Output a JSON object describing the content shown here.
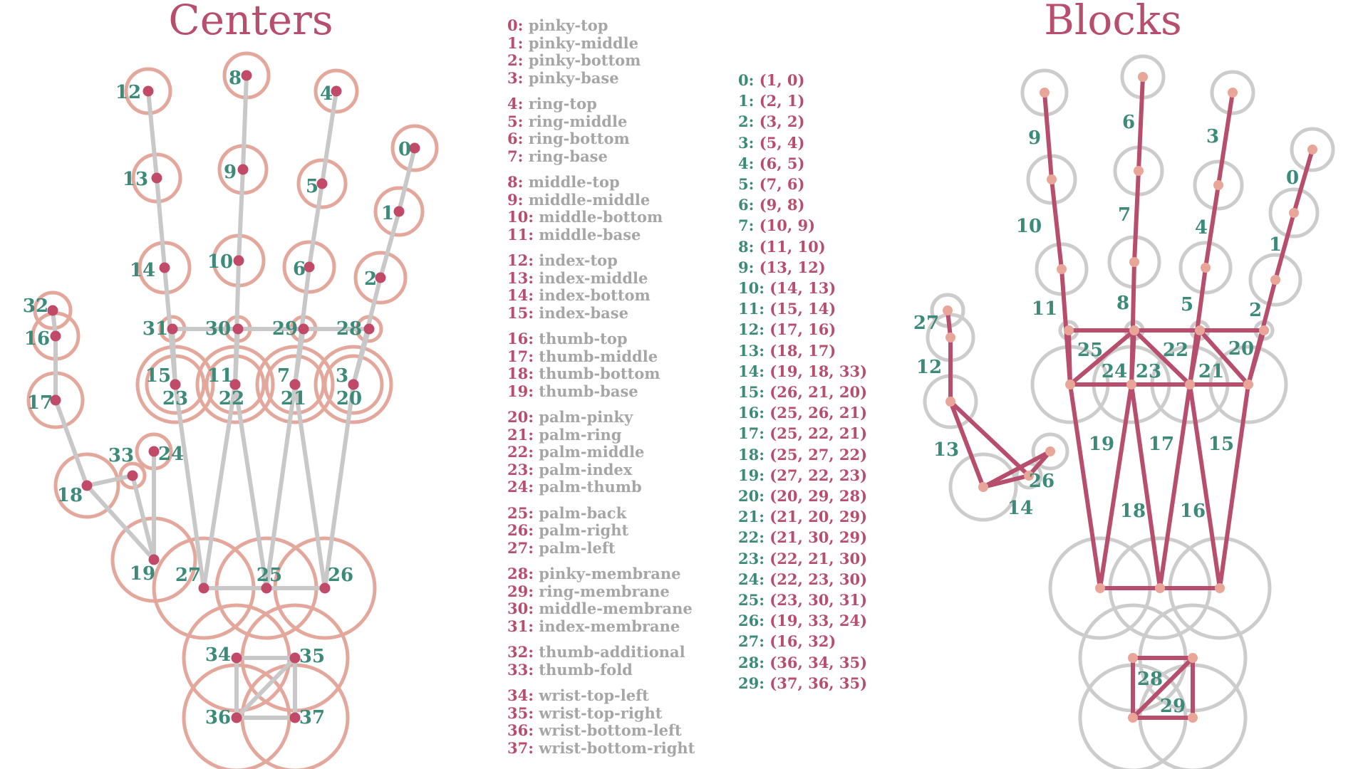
{
  "titles": {
    "left": "Centers",
    "right": "Blocks"
  },
  "colors": {
    "title": "#b84e6e",
    "dot": "#c04a68",
    "circle_left": "#e4a79c",
    "bone": "#c8c8c8",
    "label": "#3b8a7a",
    "block_edge": "#b84e6e",
    "block_node": "#e9a598",
    "circle_right": "#cccccc",
    "legend_name": "#a6a6a6"
  },
  "legend_groups": [
    [
      {
        "n": "0:",
        "name": "pinky-top"
      },
      {
        "n": "1:",
        "name": "pinky-middle"
      },
      {
        "n": "2:",
        "name": "pinky-bottom"
      },
      {
        "n": "3:",
        "name": "pinky-base"
      }
    ],
    [
      {
        "n": "4:",
        "name": "ring-top"
      },
      {
        "n": "5:",
        "name": "ring-middle"
      },
      {
        "n": "6:",
        "name": "ring-bottom"
      },
      {
        "n": "7:",
        "name": "ring-base"
      }
    ],
    [
      {
        "n": "8:",
        "name": "middle-top"
      },
      {
        "n": "9:",
        "name": "middle-middle"
      },
      {
        "n": "10:",
        "name": "middle-bottom"
      },
      {
        "n": "11:",
        "name": "middle-base"
      }
    ],
    [
      {
        "n": "12:",
        "name": "index-top"
      },
      {
        "n": "13:",
        "name": "index-middle"
      },
      {
        "n": "14:",
        "name": "index-bottom"
      },
      {
        "n": "15:",
        "name": "index-base"
      }
    ],
    [
      {
        "n": "16:",
        "name": "thumb-top"
      },
      {
        "n": "17:",
        "name": "thumb-middle"
      },
      {
        "n": "18:",
        "name": "thumb-bottom"
      },
      {
        "n": "19:",
        "name": "thumb-base"
      }
    ],
    [
      {
        "n": "20:",
        "name": "palm-pinky"
      },
      {
        "n": "21:",
        "name": "palm-ring"
      },
      {
        "n": "22:",
        "name": "palm-middle"
      },
      {
        "n": "23:",
        "name": "palm-index"
      },
      {
        "n": "24:",
        "name": "palm-thumb"
      }
    ],
    [
      {
        "n": "25:",
        "name": "palm-back"
      },
      {
        "n": "26:",
        "name": "palm-right"
      },
      {
        "n": "27:",
        "name": "palm-left"
      }
    ],
    [
      {
        "n": "28:",
        "name": "pinky-membrane"
      },
      {
        "n": "29:",
        "name": "ring-membrane"
      },
      {
        "n": "30:",
        "name": "middle-membrane"
      },
      {
        "n": "31:",
        "name": "index-membrane"
      }
    ],
    [
      {
        "n": "32:",
        "name": "thumb-additional"
      },
      {
        "n": "33:",
        "name": "thumb-fold"
      }
    ],
    [
      {
        "n": "34:",
        "name": "wrist-top-left"
      },
      {
        "n": "35:",
        "name": "wrist-top-right"
      },
      {
        "n": "36:",
        "name": "wrist-bottom-left"
      },
      {
        "n": "37:",
        "name": "wrist-bottom-right"
      }
    ]
  ],
  "blocks": [
    {
      "id": "0:",
      "nodes": "(1, 0)"
    },
    {
      "id": "1:",
      "nodes": "(2, 1)"
    },
    {
      "id": "2:",
      "nodes": "(3, 2)"
    },
    {
      "id": "3:",
      "nodes": "(5, 4)"
    },
    {
      "id": "4:",
      "nodes": "(6, 5)"
    },
    {
      "id": "5:",
      "nodes": "(7, 6)"
    },
    {
      "id": "6:",
      "nodes": "(9, 8)"
    },
    {
      "id": "7:",
      "nodes": "(10, 9)"
    },
    {
      "id": "8:",
      "nodes": "(11, 10)"
    },
    {
      "id": "9:",
      "nodes": "(13, 12)"
    },
    {
      "id": "10:",
      "nodes": "(14, 13)"
    },
    {
      "id": "11:",
      "nodes": "(15, 14)"
    },
    {
      "id": "12:",
      "nodes": "(17, 16)"
    },
    {
      "id": "13:",
      "nodes": "(18, 17)"
    },
    {
      "id": "14:",
      "nodes": "(19, 18, 33)"
    },
    {
      "id": "15:",
      "nodes": "(26, 21, 20)"
    },
    {
      "id": "16:",
      "nodes": "(25, 26, 21)"
    },
    {
      "id": "17:",
      "nodes": "(25, 22, 21)"
    },
    {
      "id": "18:",
      "nodes": "(25, 27, 22)"
    },
    {
      "id": "19:",
      "nodes": "(27, 22, 23)"
    },
    {
      "id": "20:",
      "nodes": "(20, 29, 28)"
    },
    {
      "id": "21:",
      "nodes": "(21, 20, 29)"
    },
    {
      "id": "22:",
      "nodes": "(21, 30, 29)"
    },
    {
      "id": "23:",
      "nodes": "(22, 21, 30)"
    },
    {
      "id": "24:",
      "nodes": "(22, 23, 30)"
    },
    {
      "id": "25:",
      "nodes": "(23, 30, 31)"
    },
    {
      "id": "26:",
      "nodes": "(19, 33, 24)"
    },
    {
      "id": "27:",
      "nodes": "(16, 32)"
    },
    {
      "id": "28:",
      "nodes": "(36, 34, 35)"
    },
    {
      "id": "29:",
      "nodes": "(37, 36, 35)"
    }
  ],
  "center_labels": [
    "0",
    "1",
    "2",
    "3",
    "4",
    "5",
    "6",
    "7",
    "8",
    "9",
    "10",
    "11",
    "12",
    "13",
    "14",
    "15",
    "16",
    "17",
    "18",
    "19",
    "20",
    "21",
    "22",
    "23",
    "24",
    "25",
    "26",
    "27",
    "28",
    "29",
    "30",
    "31",
    "32",
    "33",
    "34",
    "35",
    "36",
    "37"
  ],
  "block_labels": [
    "0",
    "1",
    "2",
    "3",
    "4",
    "5",
    "6",
    "7",
    "8",
    "9",
    "10",
    "11",
    "12",
    "13",
    "14",
    "15",
    "16",
    "17",
    "18",
    "19",
    "20",
    "21",
    "22",
    "23",
    "24",
    "25",
    "26",
    "27",
    "28",
    "29"
  ]
}
